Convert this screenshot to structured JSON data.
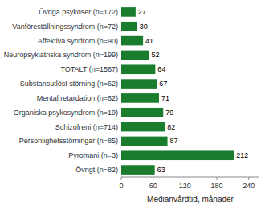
{
  "chart_data": {
    "type": "bar",
    "orientation": "horizontal",
    "xlabel": "Medianvårdtid, månader",
    "categories": [
      "Övriga psykoser (n=172)",
      "Vanföreställningssyndrom (n=72)",
      "Affektiva syndrom (n=90)",
      "Neuropsykiatriska syndrom (n=199)",
      "TOTALT (n=1567)",
      "Substansutlöst störning (n=62)",
      "Mental retardation (n=62)",
      "Organiska psykosyndrom (n=19)",
      "Schizofreni (n=714)",
      "Personlighetsstörningar (n=85)",
      "Pyromani (n=3)",
      "Övrigt (n=82)"
    ],
    "values": [
      27,
      30,
      41,
      52,
      64,
      67,
      71,
      79,
      82,
      87,
      212,
      63
    ],
    "color": "#1a7d2e",
    "xlim": [
      0,
      260
    ],
    "xticks": [
      0,
      60,
      120,
      180,
      240
    ],
    "data_labels": true,
    "grid": false
  }
}
